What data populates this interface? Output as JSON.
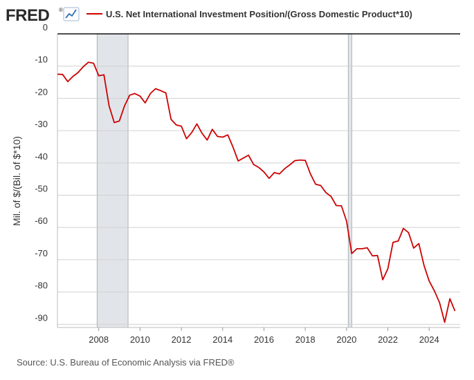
{
  "logo": {
    "text": "FRED",
    "registered": "®"
  },
  "chart_data": {
    "type": "line",
    "title": "U.S. Net International Investment Position/(Gross Domestic Product*10)",
    "ylabel": "Mil. of $/(Bil. of $*10)",
    "xlabel": "",
    "source": "Source: U.S. Bureau of Economic Analysis via FRED®",
    "series_color": "#cc0000",
    "recession_color": "#e1e5ea",
    "xlim": [
      2006.0,
      2025.5
    ],
    "ylim": [
      -91,
      0
    ],
    "yticks": [
      0,
      -10,
      -20,
      -30,
      -40,
      -50,
      -60,
      -70,
      -80,
      -90
    ],
    "ytick_labels": [
      "0",
      "-10",
      "-20",
      "-30",
      "-40",
      "-50",
      "-60",
      "-70",
      "-80",
      "-90"
    ],
    "xticks": [
      2008,
      2010,
      2012,
      2014,
      2016,
      2018,
      2020,
      2022,
      2024
    ],
    "xtick_labels": [
      "2008",
      "2010",
      "2012",
      "2014",
      "2016",
      "2018",
      "2020",
      "2022",
      "2024"
    ],
    "recessions": [
      {
        "start": 2007.92,
        "end": 2009.42
      },
      {
        "start": 2020.08,
        "end": 2020.25
      }
    ],
    "series": [
      {
        "name": "U.S. Net International Investment Position/(Gross Domestic Product*10)",
        "x": [
          2006.0,
          2006.25,
          2006.5,
          2006.75,
          2007.0,
          2007.25,
          2007.5,
          2007.75,
          2008.0,
          2008.25,
          2008.5,
          2008.75,
          2009.0,
          2009.25,
          2009.5,
          2009.75,
          2010.0,
          2010.25,
          2010.5,
          2010.75,
          2011.0,
          2011.25,
          2011.5,
          2011.75,
          2012.0,
          2012.25,
          2012.5,
          2012.75,
          2013.0,
          2013.25,
          2013.5,
          2013.75,
          2014.0,
          2014.25,
          2014.5,
          2014.75,
          2015.0,
          2015.25,
          2015.5,
          2015.75,
          2016.0,
          2016.25,
          2016.5,
          2016.75,
          2017.0,
          2017.25,
          2017.5,
          2017.75,
          2018.0,
          2018.25,
          2018.5,
          2018.75,
          2019.0,
          2019.25,
          2019.5,
          2019.75,
          2020.0,
          2020.25,
          2020.5,
          2020.75,
          2021.0,
          2021.25,
          2021.5,
          2021.75,
          2022.0,
          2022.25,
          2022.5,
          2022.75,
          2023.0,
          2023.25,
          2023.5,
          2023.75,
          2024.0,
          2024.25,
          2024.5,
          2024.75,
          2025.0,
          2025.25
        ],
        "values": [
          -12.5,
          -12.6,
          -14.8,
          -13.2,
          -12.0,
          -10.2,
          -8.8,
          -9.1,
          -13.0,
          -12.7,
          -22.3,
          -27.5,
          -27.0,
          -22.3,
          -19.0,
          -18.5,
          -19.3,
          -21.4,
          -18.5,
          -17.0,
          -17.6,
          -18.3,
          -26.5,
          -28.2,
          -28.6,
          -32.5,
          -30.6,
          -27.9,
          -30.8,
          -32.9,
          -29.6,
          -31.8,
          -32.0,
          -31.3,
          -35.1,
          -39.4,
          -38.5,
          -37.6,
          -40.5,
          -41.4,
          -42.8,
          -44.8,
          -43.0,
          -43.4,
          -41.8,
          -40.6,
          -39.3,
          -39.1,
          -39.2,
          -43.4,
          -46.6,
          -47.0,
          -49.2,
          -50.4,
          -53.2,
          -53.3,
          -58.0,
          -68.1,
          -66.6,
          -66.6,
          -66.3,
          -68.8,
          -68.7,
          -76.2,
          -72.8,
          -64.6,
          -64.2,
          -60.3,
          -61.6,
          -66.4,
          -65.0,
          -71.8,
          -76.6,
          -79.6,
          -83.3,
          -89.4,
          -82.1,
          -85.9
        ]
      }
    ]
  }
}
